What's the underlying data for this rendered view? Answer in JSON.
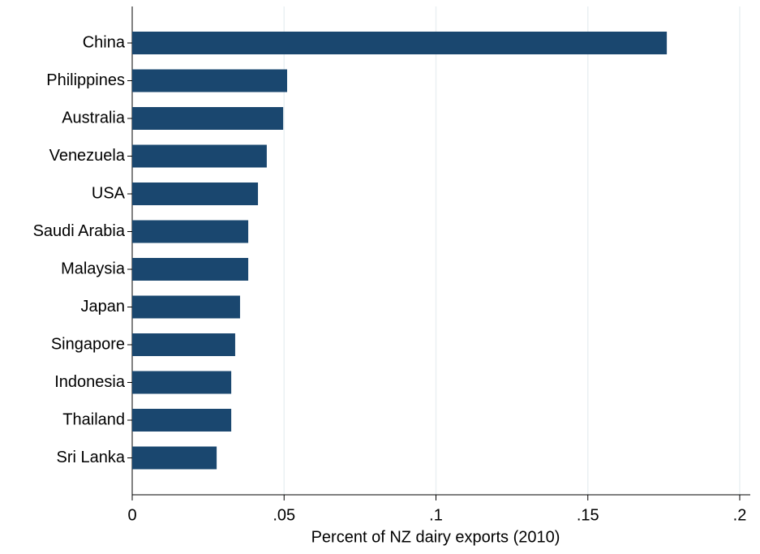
{
  "chart_data": {
    "type": "bar",
    "orientation": "horizontal",
    "x_label": "Percent of NZ dairy exports (2010)",
    "categories": [
      "China",
      "Philippines",
      "Australia",
      "Venezuela",
      "USA",
      "Saudi Arabia",
      "Malaysia",
      "Japan",
      "Singapore",
      "Indonesia",
      "Thailand",
      "Sri Lanka"
    ],
    "values": [
      0.176,
      0.051,
      0.0497,
      0.0443,
      0.0414,
      0.0382,
      0.0382,
      0.0355,
      0.0339,
      0.0326,
      0.0326,
      0.0278
    ],
    "color": "#1a476f",
    "xlim": [
      0,
      0.2
    ],
    "xticks": [
      0,
      {
        "value": 0.05,
        "label": ".05"
      },
      {
        "value": 0.1,
        "label": ".1"
      },
      {
        "value": 0.15,
        "label": ".15"
      },
      {
        "value": 0.2,
        "label": ".2"
      }
    ],
    "grid": true
  }
}
